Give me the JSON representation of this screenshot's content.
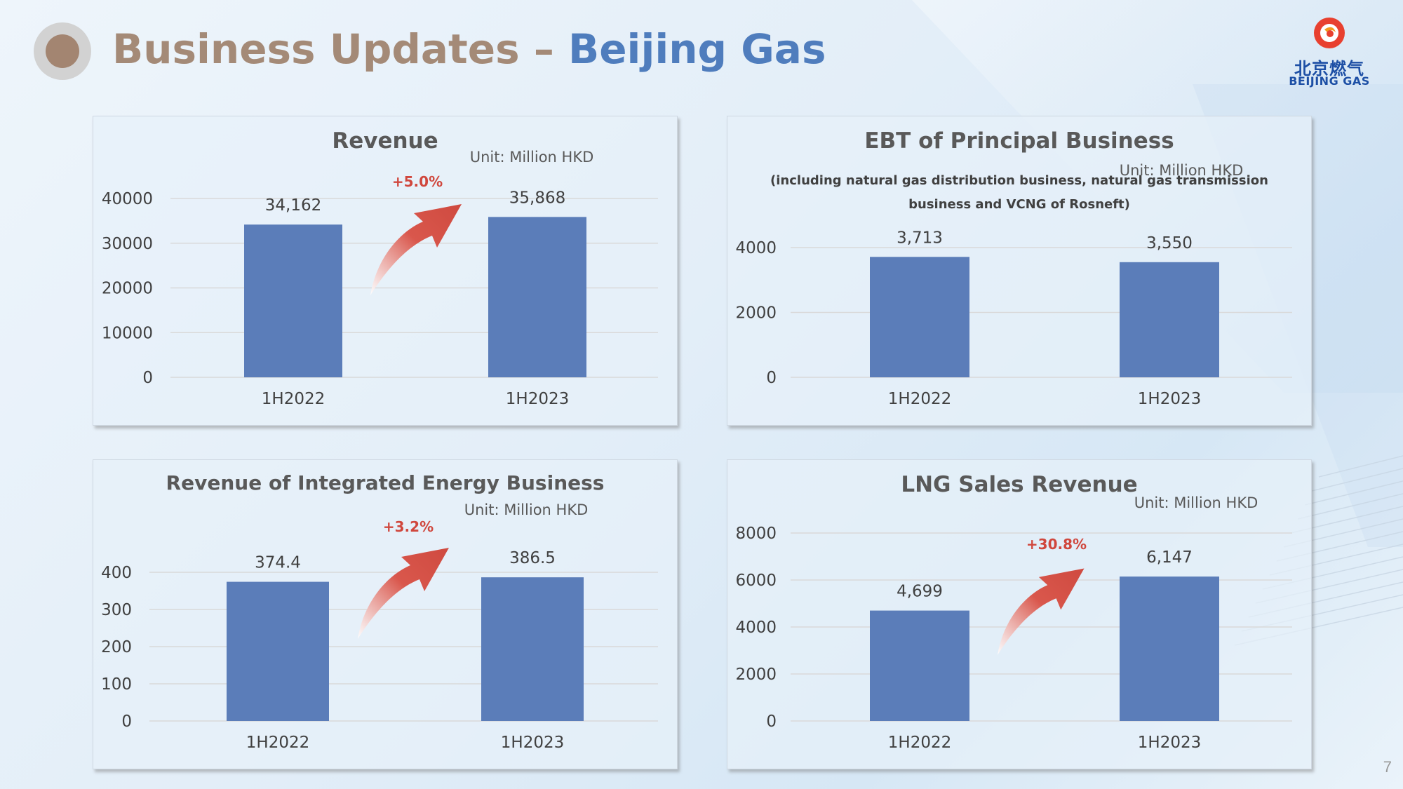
{
  "header": {
    "title_part1": "Business Updates",
    "title_separator": " – ",
    "title_part2": "Beijing Gas"
  },
  "logo": {
    "cn": "北京燃气",
    "en": "BEIJING GAS"
  },
  "page_number": "7",
  "colors": {
    "bar": "#5b7db9",
    "title_brown": "#a48a77",
    "title_blue": "#4f7dbd",
    "growth_red": "#d0473d",
    "logo_blue": "#1d4fa5",
    "logo_orange": "#e8402f"
  },
  "chart_data": [
    {
      "type": "bar",
      "title": "Revenue",
      "unit": "Unit: Million HKD",
      "categories": [
        "1H2022",
        "1H2023"
      ],
      "values": [
        34162,
        35868
      ],
      "value_labels": [
        "34,162",
        "35,868"
      ],
      "yticks": [
        "0",
        "10000",
        "20000",
        "30000",
        "40000"
      ],
      "ylim": [
        0,
        40000
      ],
      "growth_label": "+5.0%",
      "grid": true
    },
    {
      "type": "bar",
      "title": "EBT of Principal Business",
      "subtitle_line1": "(including natural gas distribution business, natural gas transmission",
      "subtitle_line2": "business and VCNG of Rosneft)",
      "unit": "Unit: Million HKD",
      "categories": [
        "1H2022",
        "1H2023"
      ],
      "values": [
        3713,
        3550
      ],
      "value_labels": [
        "3,713",
        "3,550"
      ],
      "yticks": [
        "0",
        "2000",
        "4000"
      ],
      "ylim": [
        0,
        4000
      ],
      "growth_label": "",
      "grid": true
    },
    {
      "type": "bar",
      "title": "Revenue of Integrated Energy Business",
      "unit": "Unit: Million HKD",
      "categories": [
        "1H2022",
        "1H2023"
      ],
      "values": [
        374.4,
        386.5
      ],
      "value_labels": [
        "374.4",
        "386.5"
      ],
      "yticks": [
        "0",
        "100",
        "200",
        "300",
        "400"
      ],
      "ylim": [
        0,
        400
      ],
      "growth_label": "+3.2%",
      "grid": true
    },
    {
      "type": "bar",
      "title": "LNG Sales Revenue",
      "unit": "Unit: Million HKD",
      "categories": [
        "1H2022",
        "1H2023"
      ],
      "values": [
        4699,
        6147
      ],
      "value_labels": [
        "4,699",
        "6,147"
      ],
      "yticks": [
        "0",
        "2000",
        "4000",
        "6000",
        "8000"
      ],
      "ylim": [
        0,
        8000
      ],
      "growth_label": "+30.8%",
      "grid": true
    }
  ]
}
